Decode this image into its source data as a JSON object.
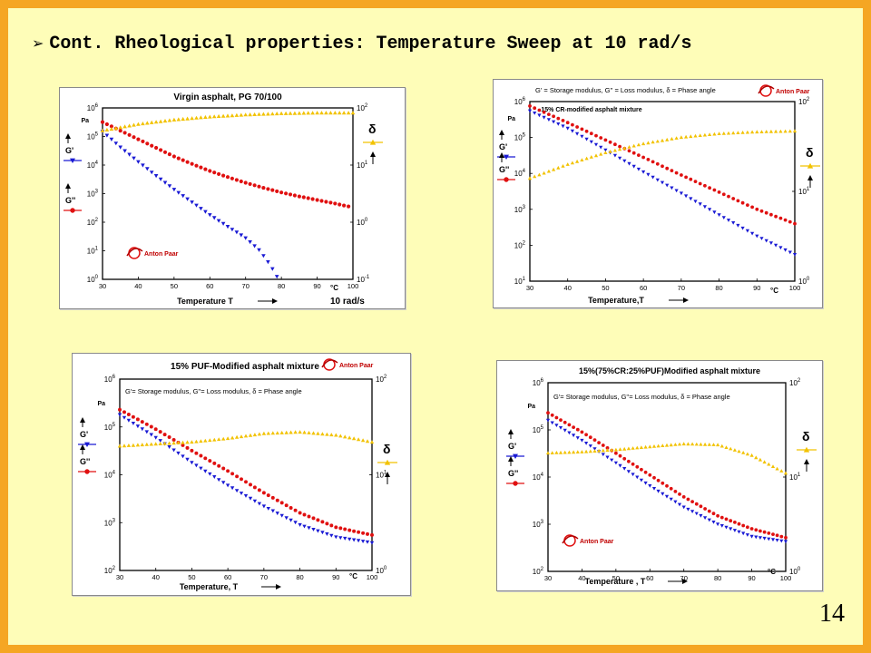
{
  "slide": {
    "title": "Cont. Rheological properties:  Temperature Sweep at 10 rad/s",
    "page_number": "14",
    "background": "#fefdb8",
    "border_color": "#f5a623"
  },
  "charts": [
    {
      "title": "Virgin asphalt, PG 70/100",
      "header_text": "",
      "left_axis": [
        "G'",
        "G''"
      ],
      "right_axis": "δ",
      "x_label": "Temperature T",
      "unit": "°C",
      "rate_label": "10 rad/s",
      "logo": "Anton Paar"
    },
    {
      "title": "15% CR-modified asphalt mixture",
      "header_text": "G' = Storage modulus,  G'' = Loss modulus,  δ = Phase angle",
      "left_axis": [
        "G'",
        "G''"
      ],
      "right_axis": "δ",
      "x_label": "Temperature,T",
      "unit": "°C",
      "rate_label": "",
      "logo": "Anton Paar"
    },
    {
      "title": "15% PUF-Modified asphalt mixture",
      "header_text": "G'= Storage modulus,    G''= Loss modulus,    δ = Phase angle",
      "left_axis": [
        "G'",
        "G''"
      ],
      "right_axis": "δ",
      "x_label": "Temperature, T",
      "unit": "°C",
      "rate_label": "",
      "logo": "Anton Paar"
    },
    {
      "title": "15%(75%CR:25%PUF)Modified asphalt mixture",
      "header_text": "G'= Storage modulus,    G''= Loss modulus,    δ = Phase angle",
      "left_axis": [
        "G'",
        "G''"
      ],
      "right_axis": "δ",
      "x_label": "Temperature , T",
      "unit": "°C",
      "rate_label": "",
      "logo": "Anton Paar"
    }
  ],
  "chart_data": [
    {
      "type": "scatter",
      "title": "Virgin asphalt, PG 70/100",
      "xlabel": "Temperature T",
      "x_unit": "°C",
      "y_left_unit": "Pa",
      "y_left_scale": "log",
      "y_left_range": [
        1,
        1000000
      ],
      "y_left_ticks": [
        "10^0",
        "10^1",
        "10^2",
        "10^3",
        "10^4",
        "10^5",
        "10^6"
      ],
      "y_right_scale": "log",
      "y_right_range": [
        0.1,
        100
      ],
      "y_right_ticks": [
        "10^-1",
        "10^0",
        "10^1",
        "10^2"
      ],
      "xlim": [
        30,
        100
      ],
      "x_ticks": [
        30,
        40,
        50,
        60,
        70,
        80,
        90,
        100
      ],
      "series": [
        {
          "name": "G'",
          "axis": "left",
          "color": "#1a1ad4",
          "marker": "triangle-down",
          "x": [
            30,
            35,
            40,
            45,
            50,
            55,
            60,
            65,
            70,
            74,
            77,
            79
          ],
          "y": [
            150000,
            42000,
            13000,
            4200,
            1400,
            500,
            180,
            70,
            28,
            10,
            3,
            1.1
          ]
        },
        {
          "name": "G''",
          "axis": "left",
          "color": "#e01010",
          "marker": "circle",
          "x": [
            30,
            35,
            40,
            45,
            50,
            55,
            60,
            65,
            70,
            75,
            80,
            85,
            90,
            95,
            99
          ],
          "y": [
            320000,
            160000,
            80000,
            40000,
            20000,
            11000,
            6200,
            3800,
            2400,
            1600,
            1100,
            800,
            600,
            450,
            350
          ]
        },
        {
          "name": "δ",
          "axis": "right",
          "color": "#f2c200",
          "marker": "triangle-up",
          "x": [
            30,
            40,
            50,
            60,
            70,
            80,
            90,
            100
          ],
          "y": [
            40,
            52,
            62,
            70,
            76,
            80,
            82,
            82
          ]
        }
      ]
    },
    {
      "type": "scatter",
      "title": "15% CR-modified asphalt mixture",
      "xlabel": "Temperature,T",
      "x_unit": "°C",
      "y_left_unit": "Pa",
      "y_left_scale": "log",
      "y_left_range": [
        10,
        1000000
      ],
      "y_left_ticks": [
        "10^1",
        "10^2",
        "10^3",
        "10^4",
        "10^5",
        "10^6"
      ],
      "y_right_scale": "log",
      "y_right_range": [
        1,
        100
      ],
      "y_right_ticks": [
        "10^0",
        "10^1",
        "10^2"
      ],
      "xlim": [
        30,
        100
      ],
      "x_ticks": [
        30,
        40,
        50,
        60,
        70,
        80,
        90,
        100
      ],
      "series": [
        {
          "name": "G'",
          "axis": "left",
          "color": "#1a1ad4",
          "marker": "triangle-down",
          "x": [
            30,
            40,
            50,
            60,
            70,
            80,
            90,
            100
          ],
          "y": [
            550000,
            180000,
            45000,
            11000,
            2800,
            700,
            180,
            55
          ]
        },
        {
          "name": "G''",
          "axis": "left",
          "color": "#e01010",
          "marker": "circle",
          "x": [
            30,
            40,
            50,
            60,
            70,
            80,
            90,
            100
          ],
          "y": [
            750000,
            260000,
            85000,
            28000,
            9000,
            3000,
            1000,
            400
          ]
        },
        {
          "name": "δ",
          "axis": "right",
          "color": "#f2c200",
          "marker": "triangle-up",
          "x": [
            30,
            40,
            50,
            60,
            70,
            80,
            90,
            100
          ],
          "y": [
            14,
            20,
            27,
            34,
            40,
            44,
            46,
            47
          ]
        }
      ]
    },
    {
      "type": "scatter",
      "title": "15% PUF-Modified asphalt mixture",
      "xlabel": "Temperature, T",
      "x_unit": "°C",
      "y_left_unit": "Pa",
      "y_left_scale": "log",
      "y_left_range": [
        100,
        1000000
      ],
      "y_left_ticks": [
        "10^2",
        "10^3",
        "10^4",
        "10^5",
        "10^6"
      ],
      "y_right_scale": "log",
      "y_right_range": [
        1,
        100
      ],
      "y_right_ticks": [
        "10^0",
        "10^1",
        "10^2"
      ],
      "xlim": [
        30,
        100
      ],
      "x_ticks": [
        30,
        40,
        50,
        60,
        70,
        80,
        90,
        100
      ],
      "series": [
        {
          "name": "G'",
          "axis": "left",
          "color": "#1a1ad4",
          "marker": "triangle-down",
          "x": [
            30,
            40,
            50,
            60,
            70,
            80,
            90,
            100
          ],
          "y": [
            180000,
            60000,
            18000,
            6000,
            2200,
            900,
            500,
            380
          ]
        },
        {
          "name": "G''",
          "axis": "left",
          "color": "#e01010",
          "marker": "circle",
          "x": [
            30,
            40,
            50,
            60,
            70,
            80,
            90,
            100
          ],
          "y": [
            230000,
            90000,
            32000,
            12000,
            4200,
            1600,
            800,
            550
          ]
        },
        {
          "name": "δ",
          "axis": "right",
          "color": "#f2c200",
          "marker": "triangle-up",
          "x": [
            30,
            40,
            50,
            60,
            70,
            80,
            90,
            100
          ],
          "y": [
            20,
            21,
            22,
            24,
            27,
            28,
            26,
            22
          ]
        }
      ]
    },
    {
      "type": "scatter",
      "title": "15%(75%CR:25%PUF)Modified asphalt mixture",
      "xlabel": "Temperature , T",
      "x_unit": "°C",
      "y_left_unit": "Pa",
      "y_left_scale": "log",
      "y_left_range": [
        100,
        1000000
      ],
      "y_left_ticks": [
        "10^2",
        "10^3",
        "10^4",
        "10^5",
        "10^6"
      ],
      "y_right_scale": "log",
      "y_right_range": [
        1,
        100
      ],
      "y_right_ticks": [
        "10^0",
        "10^1",
        "10^2"
      ],
      "xlim": [
        30,
        100
      ],
      "x_ticks": [
        30,
        40,
        50,
        60,
        70,
        80,
        90,
        100
      ],
      "series": [
        {
          "name": "G'",
          "axis": "left",
          "color": "#1a1ad4",
          "marker": "triangle-down",
          "x": [
            30,
            40,
            50,
            60,
            70,
            80,
            90,
            100
          ],
          "y": [
            160000,
            60000,
            20000,
            6500,
            2300,
            1000,
            550,
            430
          ]
        },
        {
          "name": "G''",
          "axis": "left",
          "color": "#e01010",
          "marker": "circle",
          "x": [
            30,
            40,
            50,
            60,
            70,
            80,
            90,
            100
          ],
          "y": [
            230000,
            90000,
            32000,
            11000,
            3800,
            1500,
            800,
            520
          ]
        },
        {
          "name": "δ",
          "axis": "right",
          "color": "#f2c200",
          "marker": "triangle-up",
          "x": [
            30,
            40,
            50,
            60,
            70,
            80,
            90,
            100
          ],
          "y": [
            18,
            18.5,
            19.5,
            21,
            22.5,
            22,
            17,
            11
          ]
        }
      ]
    }
  ]
}
